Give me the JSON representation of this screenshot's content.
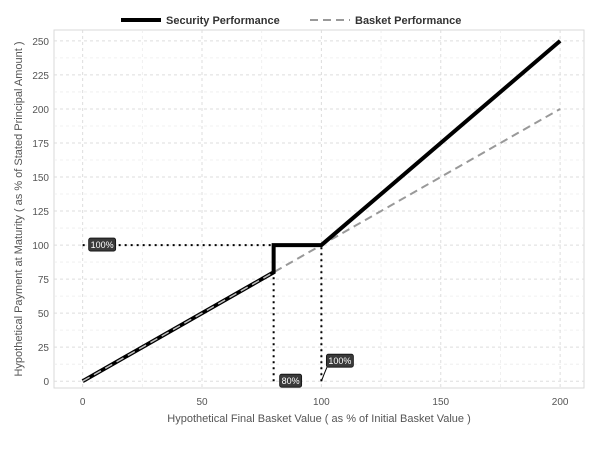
{
  "chart_data": {
    "type": "line",
    "title": "",
    "xlabel": "Hypothetical Final Basket Value ( as % of Initial Basket Value )",
    "ylabel": "Hypothetical Payment at Maturity ( as % of Stated Principal Amount )",
    "xlim": [
      -12,
      210
    ],
    "ylim": [
      -5,
      258
    ],
    "xticks": [
      0,
      50,
      100,
      150,
      200
    ],
    "yticks": [
      0,
      25,
      50,
      75,
      100,
      125,
      150,
      175,
      200,
      225,
      250
    ],
    "grid": true,
    "legend_position": "top-center",
    "series": [
      {
        "name": "Security Performance",
        "color": "#000000",
        "style": "solid",
        "x": [
          0,
          80,
          80,
          100,
          200
        ],
        "y": [
          0,
          80,
          100,
          100,
          250
        ]
      },
      {
        "name": "Basket Performance",
        "color": "#999999",
        "style": "dashed",
        "x": [
          0,
          200
        ],
        "y": [
          0,
          200
        ]
      }
    ],
    "reference_lines": [
      {
        "from": [
          0,
          100
        ],
        "to": [
          100,
          100
        ]
      },
      {
        "from": [
          80,
          0
        ],
        "to": [
          80,
          100
        ]
      },
      {
        "from": [
          100,
          0
        ],
        "to": [
          100,
          100
        ]
      }
    ],
    "annotations": [
      {
        "text": "100%",
        "x": 0,
        "y": 100
      },
      {
        "text": "80%",
        "x": 80,
        "y": 0
      },
      {
        "text": "100%",
        "x": 100,
        "y": 0
      }
    ]
  }
}
